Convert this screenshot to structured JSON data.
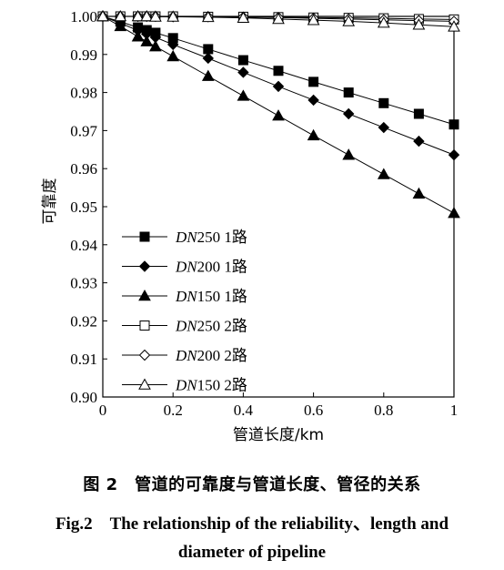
{
  "chart_data": {
    "type": "line",
    "xlabel": "管道长度/km",
    "ylabel": "可靠度",
    "xlim": [
      0,
      1
    ],
    "ylim": [
      0.9,
      1.0
    ],
    "xticks": [
      "0",
      "0.2",
      "0.4",
      "0.6",
      "0.8",
      "1"
    ],
    "yticks": [
      "0.90",
      "0.91",
      "0.92",
      "0.93",
      "0.94",
      "0.95",
      "0.96",
      "0.97",
      "0.98",
      "0.99",
      "1.00"
    ],
    "legend_position": "bottom-left",
    "grid": false,
    "series": [
      {
        "name": "DN250 1路",
        "name_prefix": "DN",
        "name_suffix": "250 1路",
        "marker": "square-filled",
        "points": [
          [
            0,
            1.0
          ],
          [
            0.05,
            0.9986
          ],
          [
            0.1,
            0.9971
          ],
          [
            0.125,
            0.9964
          ],
          [
            0.15,
            0.9957
          ],
          [
            0.2,
            0.9943
          ],
          [
            0.3,
            0.9914
          ],
          [
            0.4,
            0.9885
          ],
          [
            0.5,
            0.9857
          ],
          [
            0.6,
            0.9828
          ],
          [
            0.7,
            0.98
          ],
          [
            0.8,
            0.9772
          ],
          [
            0.9,
            0.9744
          ],
          [
            1.0,
            0.9716
          ]
        ]
      },
      {
        "name": "DN200 1路",
        "name_prefix": "DN",
        "name_suffix": "200 1路",
        "marker": "diamond-filled",
        "points": [
          [
            0,
            1.0
          ],
          [
            0.05,
            0.9982
          ],
          [
            0.1,
            0.9963
          ],
          [
            0.125,
            0.9954
          ],
          [
            0.15,
            0.9945
          ],
          [
            0.2,
            0.9926
          ],
          [
            0.3,
            0.989
          ],
          [
            0.4,
            0.9853
          ],
          [
            0.5,
            0.9816
          ],
          [
            0.6,
            0.978
          ],
          [
            0.7,
            0.9744
          ],
          [
            0.8,
            0.9708
          ],
          [
            0.9,
            0.9672
          ],
          [
            1.0,
            0.9636
          ]
        ]
      },
      {
        "name": "DN150 1路",
        "name_prefix": "DN",
        "name_suffix": "150 1路",
        "marker": "triangle-filled",
        "points": [
          [
            0,
            1.0
          ],
          [
            0.05,
            0.9974
          ],
          [
            0.1,
            0.9947
          ],
          [
            0.125,
            0.9934
          ],
          [
            0.15,
            0.9921
          ],
          [
            0.2,
            0.9895
          ],
          [
            0.3,
            0.9843
          ],
          [
            0.4,
            0.9791
          ],
          [
            0.5,
            0.9739
          ],
          [
            0.6,
            0.9687
          ],
          [
            0.7,
            0.9636
          ],
          [
            0.8,
            0.9585
          ],
          [
            0.9,
            0.9534
          ],
          [
            1.0,
            0.9483
          ]
        ]
      },
      {
        "name": "DN250 2路",
        "name_prefix": "DN",
        "name_suffix": "250 2路",
        "marker": "square-open",
        "points": [
          [
            0,
            1.0
          ],
          [
            0.05,
            1.0
          ],
          [
            0.1,
            1.0
          ],
          [
            0.125,
            1.0
          ],
          [
            0.15,
            1.0
          ],
          [
            0.2,
            1.0
          ],
          [
            0.3,
            0.9999
          ],
          [
            0.4,
            0.9999
          ],
          [
            0.5,
            0.9998
          ],
          [
            0.6,
            0.9997
          ],
          [
            0.7,
            0.9996
          ],
          [
            0.8,
            0.9995
          ],
          [
            0.9,
            0.9993
          ],
          [
            1.0,
            0.9992
          ]
        ]
      },
      {
        "name": "DN200 2路",
        "name_prefix": "DN",
        "name_suffix": "200 2路",
        "marker": "diamond-open",
        "points": [
          [
            0,
            1.0
          ],
          [
            0.05,
            1.0
          ],
          [
            0.1,
            1.0
          ],
          [
            0.125,
            1.0
          ],
          [
            0.15,
            1.0
          ],
          [
            0.2,
            0.9999
          ],
          [
            0.3,
            0.9999
          ],
          [
            0.4,
            0.9998
          ],
          [
            0.5,
            0.9997
          ],
          [
            0.6,
            0.9995
          ],
          [
            0.7,
            0.9993
          ],
          [
            0.8,
            0.9991
          ],
          [
            0.9,
            0.9989
          ],
          [
            1.0,
            0.9987
          ]
        ]
      },
      {
        "name": "DN150 2路",
        "name_prefix": "DN",
        "name_suffix": "150 2路",
        "marker": "triangle-open",
        "points": [
          [
            0,
            1.0
          ],
          [
            0.05,
            1.0
          ],
          [
            0.1,
            1.0
          ],
          [
            0.125,
            1.0
          ],
          [
            0.15,
            0.9999
          ],
          [
            0.2,
            0.9999
          ],
          [
            0.3,
            0.9998
          ],
          [
            0.4,
            0.9996
          ],
          [
            0.5,
            0.9993
          ],
          [
            0.6,
            0.999
          ],
          [
            0.7,
            0.9987
          ],
          [
            0.8,
            0.9983
          ],
          [
            0.9,
            0.9978
          ],
          [
            1.0,
            0.9973
          ]
        ]
      }
    ]
  },
  "caption": {
    "cn": "图 2　管道的可靠度与管道长度、管径的关系",
    "en_line1": "Fig.2　The relationship of the reliability、length and",
    "en_line2": "diameter of pipeline"
  }
}
